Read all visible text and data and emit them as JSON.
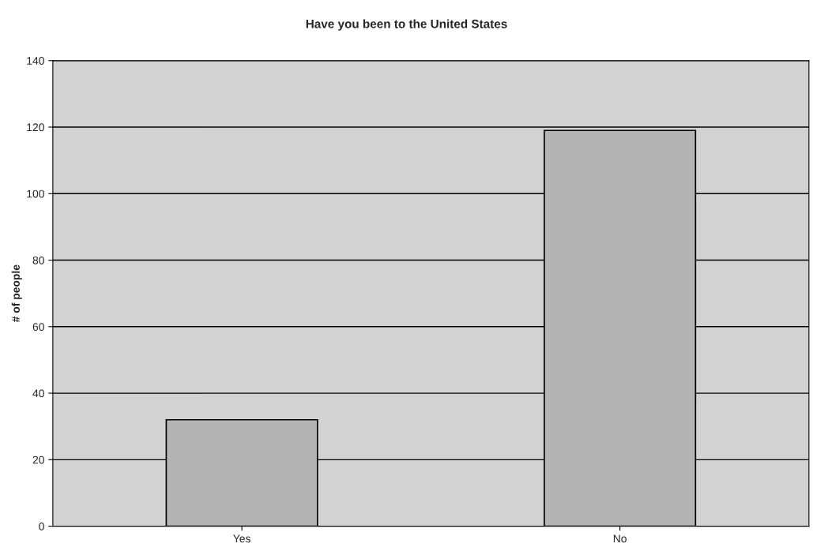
{
  "chart_data": {
    "type": "bar",
    "title": "Have you been to the United States",
    "ylabel": "# of people",
    "categories": [
      "Yes",
      "No"
    ],
    "values": [
      32,
      119
    ],
    "color": "#b4b4b4",
    "ylim": [
      0,
      140
    ],
    "yticks": [
      0,
      20,
      40,
      60,
      80,
      100,
      120,
      140
    ],
    "grid": "y"
  }
}
